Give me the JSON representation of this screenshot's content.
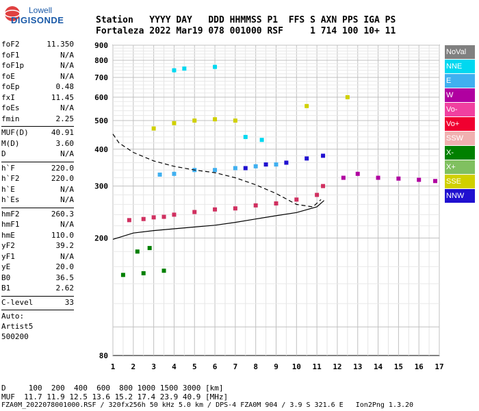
{
  "logo": {
    "line1": "Lowell",
    "line2": "DIGISONDE"
  },
  "header": {
    "line1": "Station   YYYY DAY   DDD HHMMSS P1  FFS S AXN PPS IGA PS",
    "line2": "Fortaleza 2022 Mar19 078 001000 RSF     1 714 100 10+ 11"
  },
  "params": {
    "group1": [
      {
        "name": "foF2",
        "value": "11.350"
      },
      {
        "name": "foF1",
        "value": "N/A"
      },
      {
        "name": "foF1p",
        "value": "N/A"
      },
      {
        "name": "foE",
        "value": "N/A"
      },
      {
        "name": "foEp",
        "value": "0.48"
      },
      {
        "name": "fxI",
        "value": "11.45"
      },
      {
        "name": "foEs",
        "value": "N/A"
      },
      {
        "name": "fmin",
        "value": "2.25"
      }
    ],
    "group2": [
      {
        "name": "MUF(D)",
        "value": "40.91"
      },
      {
        "name": "M(D)",
        "value": "3.60"
      },
      {
        "name": "D",
        "value": "N/A"
      }
    ],
    "group3": [
      {
        "name": "h`F",
        "value": "220.0"
      },
      {
        "name": "h`F2",
        "value": "220.0"
      },
      {
        "name": "h`E",
        "value": "N/A"
      },
      {
        "name": "h`Es",
        "value": "N/A"
      }
    ],
    "group4": [
      {
        "name": "hmF2",
        "value": "260.3"
      },
      {
        "name": "hmF1",
        "value": "N/A"
      },
      {
        "name": "hmE",
        "value": "110.0"
      },
      {
        "name": "yF2",
        "value": "39.2"
      },
      {
        "name": "yF1",
        "value": "N/A"
      },
      {
        "name": "yE",
        "value": "20.0"
      },
      {
        "name": "B0",
        "value": "36.5"
      },
      {
        "name": "B1",
        "value": "2.62"
      }
    ],
    "group5": [
      {
        "name": "C-level",
        "value": "33"
      }
    ],
    "auto": [
      "Auto:",
      "Artist5",
      "500200"
    ]
  },
  "legend": [
    {
      "label": "NoVal",
      "color": "#808080"
    },
    {
      "label": "NNE",
      "color": "#00d8f0"
    },
    {
      "label": "E",
      "color": "#40b0f0"
    },
    {
      "label": "W",
      "color": "#b000a0"
    },
    {
      "label": "Vo-",
      "color": "#f040a0"
    },
    {
      "label": "Vo+",
      "color": "#f00030"
    },
    {
      "label": "SSW",
      "color": "#f0b0b0"
    },
    {
      "label": "X-",
      "color": "#008000"
    },
    {
      "label": "X+",
      "color": "#80c060"
    },
    {
      "label": "SSE",
      "color": "#d0d000"
    },
    {
      "label": "NNW",
      "color": "#2010d0"
    }
  ],
  "chart_data": {
    "type": "scatter",
    "title": "",
    "xlabel": "",
    "ylabel": "",
    "xlim": [
      1,
      17
    ],
    "ylim": [
      80,
      900
    ],
    "x_ticks": [
      "1",
      "2",
      "3",
      "4",
      "5",
      "6",
      "7",
      "8",
      "9",
      "10",
      "11",
      "12",
      "13",
      "14",
      "15",
      "16",
      "17"
    ],
    "y_ticks": [
      "80",
      "200",
      "300",
      "400",
      "500",
      "600",
      "700",
      "800",
      "900"
    ],
    "y_tick_values": [
      80,
      200,
      300,
      400,
      500,
      600,
      700,
      800,
      900
    ],
    "log_height_axis": true,
    "series": [
      {
        "color": "#d03060",
        "points": [
          [
            1.8,
            230
          ],
          [
            2.5,
            232
          ],
          [
            3.0,
            235
          ],
          [
            3.5,
            236
          ],
          [
            4.0,
            240
          ],
          [
            5.0,
            245
          ],
          [
            6.0,
            250
          ],
          [
            7.0,
            252
          ],
          [
            8.0,
            258
          ],
          [
            9.0,
            262
          ],
          [
            10.0,
            270
          ],
          [
            11.0,
            280
          ],
          [
            11.3,
            300
          ]
        ]
      },
      {
        "color": "#40b0f0",
        "points": [
          [
            3.3,
            328
          ],
          [
            4.0,
            330
          ],
          [
            5.0,
            340
          ],
          [
            6.0,
            340
          ],
          [
            7.0,
            345
          ],
          [
            8.0,
            350
          ],
          [
            9.0,
            355
          ]
        ]
      },
      {
        "color": "#2010d0",
        "points": [
          [
            7.5,
            345
          ],
          [
            8.5,
            355
          ],
          [
            9.5,
            360
          ],
          [
            10.5,
            372
          ],
          [
            11.3,
            380
          ]
        ]
      },
      {
        "color": "#b000a0",
        "points": [
          [
            12.3,
            320
          ],
          [
            13.0,
            330
          ],
          [
            14.0,
            320
          ],
          [
            15.0,
            318
          ],
          [
            16.0,
            315
          ],
          [
            16.8,
            312
          ]
        ]
      },
      {
        "color": "#d0d000",
        "points": [
          [
            3.0,
            470
          ],
          [
            4.0,
            490
          ],
          [
            5.0,
            500
          ],
          [
            6.0,
            505
          ],
          [
            7.0,
            500
          ],
          [
            10.5,
            560
          ],
          [
            12.5,
            600
          ]
        ]
      },
      {
        "color": "#00d8f0",
        "points": [
          [
            4.0,
            740
          ],
          [
            4.5,
            750
          ],
          [
            6.0,
            760
          ],
          [
            7.5,
            440
          ],
          [
            8.3,
            430
          ]
        ]
      },
      {
        "color": "#008000",
        "points": [
          [
            1.5,
            150
          ],
          [
            2.5,
            152
          ],
          [
            3.5,
            155
          ],
          [
            2.2,
            180
          ],
          [
            2.8,
            185
          ]
        ]
      }
    ],
    "curves": [
      {
        "style": "solid",
        "points": [
          [
            1.0,
            198
          ],
          [
            2.0,
            208
          ],
          [
            3.0,
            212
          ],
          [
            4.0,
            215
          ],
          [
            5.0,
            218
          ],
          [
            6.0,
            221
          ],
          [
            7.0,
            226
          ],
          [
            8.0,
            232
          ],
          [
            9.0,
            238
          ],
          [
            10.0,
            244
          ],
          [
            11.0,
            255
          ],
          [
            11.35,
            268
          ]
        ]
      },
      {
        "style": "dashed",
        "points": [
          [
            1.0,
            450
          ],
          [
            1.3,
            420
          ],
          [
            2.0,
            390
          ],
          [
            3.0,
            365
          ],
          [
            4.0,
            350
          ],
          [
            5.0,
            340
          ],
          [
            6.0,
            333
          ],
          [
            7.0,
            320
          ],
          [
            8.0,
            303
          ],
          [
            9.0,
            283
          ],
          [
            10.0,
            260
          ],
          [
            10.8,
            255
          ],
          [
            11.2,
            270
          ]
        ]
      }
    ]
  },
  "footer": {
    "line1": "D     100  200  400  600  800 1000 1500 3000 [km]",
    "line2": "MUF  11.7 11.9 12.5 13.6 15.2 17.4 23.9 40.9 [MHz]",
    "line3": "FZA0M_2022078001000.RSF / 320fx256h 50 kHz 5.0 km / DPS-4 FZA0M 904 / 3.9 S 321.6 E   Ion2Png 1.3.20"
  }
}
